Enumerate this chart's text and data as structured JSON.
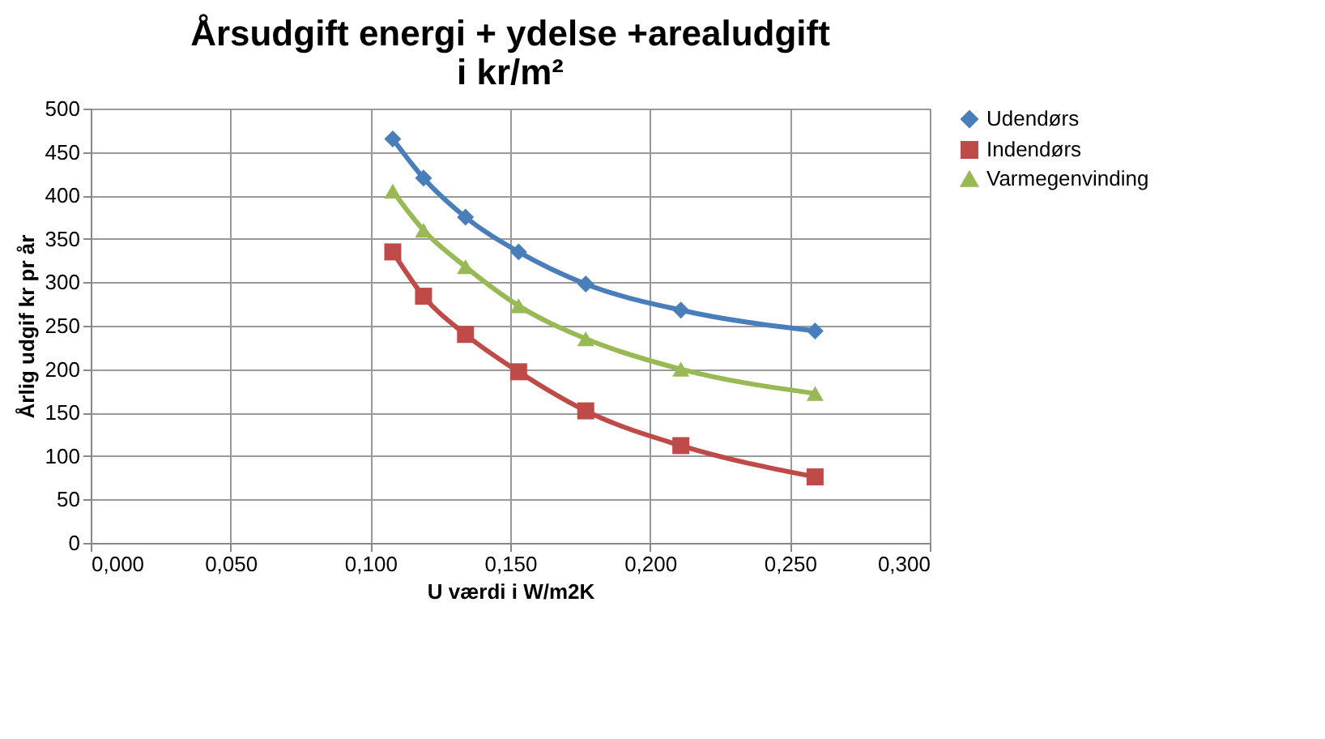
{
  "chart_data": {
    "type": "line",
    "title": "Årsudgift energi + ydelse +arealudgift\ni kr/m²",
    "xlabel": "U værdi i W/m2K",
    "ylabel": "Årlig udgif kr pr år",
    "x": [
      0.108,
      0.119,
      0.134,
      0.153,
      0.177,
      0.211,
      0.259
    ],
    "series": [
      {
        "name": "Udendørs",
        "color": "#4a7ebb",
        "marker": "diamond",
        "values": [
          465,
          420,
          375,
          335,
          298,
          268,
          244
        ]
      },
      {
        "name": "Indendørs",
        "color": "#be4b48",
        "marker": "square",
        "values": [
          335,
          284,
          240,
          197,
          152,
          112,
          76
        ]
      },
      {
        "name": "Varmegenvinding",
        "color": "#98b954",
        "marker": "triangle",
        "values": [
          405,
          360,
          318,
          273,
          235,
          200,
          172
        ]
      }
    ],
    "xlim": [
      0,
      0.3
    ],
    "xticks": [
      {
        "value": 0,
        "label": "0,000"
      },
      {
        "value": 0.05,
        "label": "0,050"
      },
      {
        "value": 0.1,
        "label": "0,100"
      },
      {
        "value": 0.15,
        "label": "0,150"
      },
      {
        "value": 0.2,
        "label": "0,200"
      },
      {
        "value": 0.25,
        "label": "0,250"
      },
      {
        "value": 0.3,
        "label": "0,300"
      }
    ],
    "ylim": [
      0,
      500
    ],
    "yticks": [
      0,
      50,
      100,
      150,
      200,
      250,
      300,
      350,
      400,
      450,
      500
    ],
    "grid": true,
    "legend": "right",
    "line_style": "solid"
  }
}
